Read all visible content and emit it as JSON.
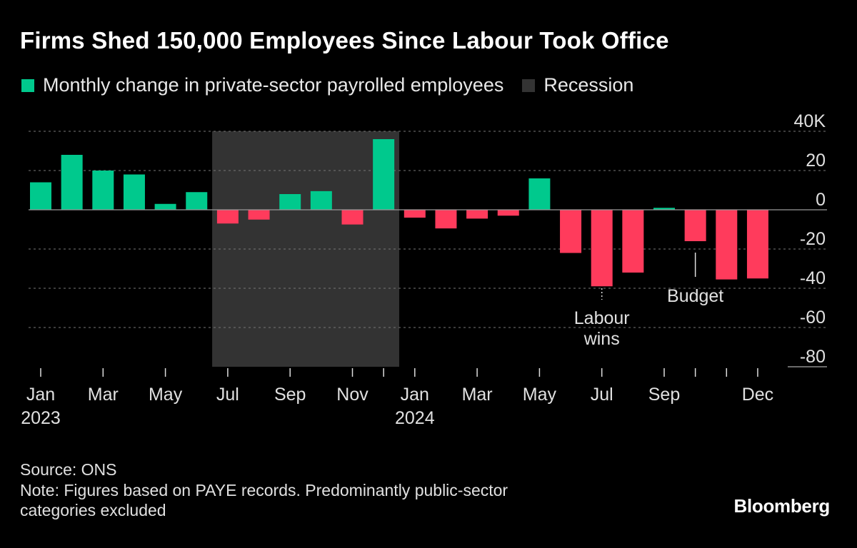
{
  "title": "Firms Shed 150,000 Employees Since Labour Took Office",
  "legend": [
    {
      "label": "Monthly change in private-sector payrolled employees",
      "color": "#00c98d"
    },
    {
      "label": "Recession",
      "color": "#333333"
    }
  ],
  "colors": {
    "positive": "#00c98d",
    "negative": "#ff3b5c",
    "recession": "#333333",
    "grid": "#777777"
  },
  "chart_data": {
    "type": "bar",
    "categories": [
      "Jan 2023",
      "Feb 2023",
      "Mar 2023",
      "Apr 2023",
      "May 2023",
      "Jun 2023",
      "Jul 2023",
      "Aug 2023",
      "Sep 2023",
      "Oct 2023",
      "Nov 2023",
      "Dec 2023",
      "Jan 2024",
      "Feb 2024",
      "Mar 2024",
      "Apr 2024",
      "May 2024",
      "Jun 2024",
      "Jul 2024",
      "Aug 2024",
      "Sep 2024",
      "Oct 2024",
      "Nov 2024",
      "Dec 2024"
    ],
    "values": [
      14,
      28,
      20,
      18,
      3,
      9,
      -7,
      -5,
      8,
      9.5,
      -7.5,
      36,
      -4,
      -9.5,
      -4.5,
      -3,
      16,
      -22,
      -39,
      -32,
      1,
      -16,
      -35.5,
      -35
    ],
    "recession": {
      "start": "Jul 2023",
      "end": "Dec 2023"
    },
    "ylim": [
      -80,
      40
    ],
    "yticks": [
      40,
      20,
      0,
      -20,
      -40,
      -60,
      -80
    ],
    "ytick_labels": [
      "40K",
      "20",
      "0",
      "-20",
      "-40",
      "-60",
      "-80"
    ],
    "xtick_labels": [
      {
        "month": "Jan",
        "year": "2023",
        "index": 0
      },
      {
        "month": "Mar",
        "year": "",
        "index": 2
      },
      {
        "month": "May",
        "year": "",
        "index": 4
      },
      {
        "month": "Jul",
        "year": "",
        "index": 6
      },
      {
        "month": "Sep",
        "year": "",
        "index": 8
      },
      {
        "month": "Nov",
        "year": "",
        "index": 10
      },
      {
        "month": "Jan",
        "year": "2024",
        "index": 12
      },
      {
        "month": "Mar",
        "year": "",
        "index": 14
      },
      {
        "month": "May",
        "year": "",
        "index": 16
      },
      {
        "month": "Jul",
        "year": "",
        "index": 18
      },
      {
        "month": "Sep",
        "year": "",
        "index": 20
      },
      {
        "month": "Dec",
        "year": "",
        "index": 23
      }
    ],
    "annotations": [
      {
        "lines": [
          "Labour",
          "wins"
        ],
        "index": 18
      },
      {
        "lines": [
          "Budget"
        ],
        "index": 21
      }
    ],
    "grid": true
  },
  "footer": {
    "source": "Source: ONS",
    "note_line1": "Note: Figures based on PAYE records. Predominantly public-sector",
    "note_line2": "categories excluded",
    "brand": "Bloomberg"
  }
}
